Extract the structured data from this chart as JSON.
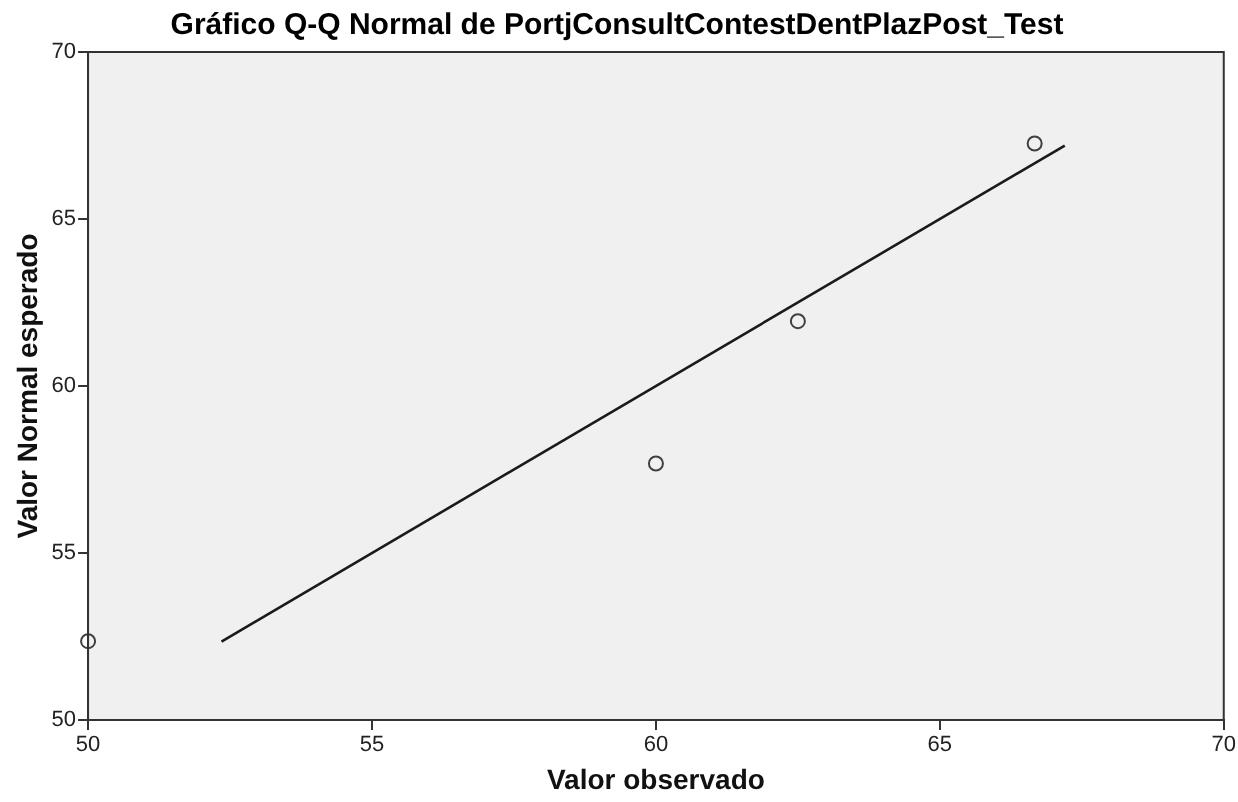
{
  "chart_data": {
    "type": "scatter",
    "title": "Gráfico Q-Q Normal de PortjConsultContestDentPlazPost_Test",
    "xlabel": "Valor observado",
    "ylabel": "Valor Normal esperado",
    "xlim": [
      50,
      70
    ],
    "ylim": [
      50,
      70
    ],
    "xticks": [
      50,
      55,
      60,
      65,
      70
    ],
    "yticks": [
      50,
      55,
      60,
      65,
      70
    ],
    "grid": false,
    "legend": false,
    "series": [
      {
        "color": "#404040",
        "marker": "circle",
        "x": [
          50,
          60,
          62.5,
          66.67
        ],
        "values": [
          52.36,
          57.68,
          61.94,
          67.26
        ]
      },
      {
        "type": "line",
        "color": "#1a1a1a",
        "marker": "none",
        "line_style": "solid",
        "x": [
          52.35,
          67.2
        ],
        "values": [
          52.35,
          67.2
        ]
      }
    ]
  }
}
